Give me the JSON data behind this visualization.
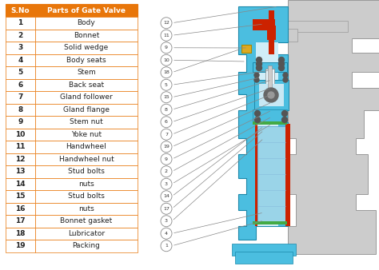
{
  "header": [
    "S.No",
    "Parts of Gate Valve"
  ],
  "rows": [
    [
      "1",
      "Body"
    ],
    [
      "2",
      "Bonnet"
    ],
    [
      "3",
      "Solid wedge"
    ],
    [
      "4",
      "Body seats"
    ],
    [
      "5",
      "Stem"
    ],
    [
      "6",
      "Back seat"
    ],
    [
      "7",
      "Gland follower"
    ],
    [
      "8",
      "Gland flange"
    ],
    [
      "9",
      "Stem nut"
    ],
    [
      "10",
      "Yoke nut"
    ],
    [
      "11",
      "Handwheel"
    ],
    [
      "12",
      "Handwheel nut"
    ],
    [
      "13",
      "Stud bolts"
    ],
    [
      "14",
      "nuts"
    ],
    [
      "15",
      "Stud bolts"
    ],
    [
      "16",
      "nuts"
    ],
    [
      "17",
      "Bonnet gasket"
    ],
    [
      "18",
      "Lubricator"
    ],
    [
      "19",
      "Packing"
    ]
  ],
  "header_bg": "#E8760A",
  "header_text": "#FFFFFF",
  "row_text": "#222222",
  "border_color": "#E8760A",
  "callout_nums": [
    12,
    11,
    9,
    10,
    18,
    5,
    15,
    8,
    6,
    7,
    19,
    9,
    2,
    3,
    14,
    17,
    3,
    4,
    1
  ],
  "sky_blue": "#4BBEE0",
  "light_blue": "#9AD4E8",
  "gray": "#BBBBBB",
  "light_gray": "#CCCCCC",
  "red": "#CC2200",
  "green": "#44AA44",
  "yellow": "#DDAA22",
  "dark_blue": "#2266AA",
  "font_size_header": 6.5,
  "font_size_row": 6.5,
  "font_size_callout": 4.5
}
